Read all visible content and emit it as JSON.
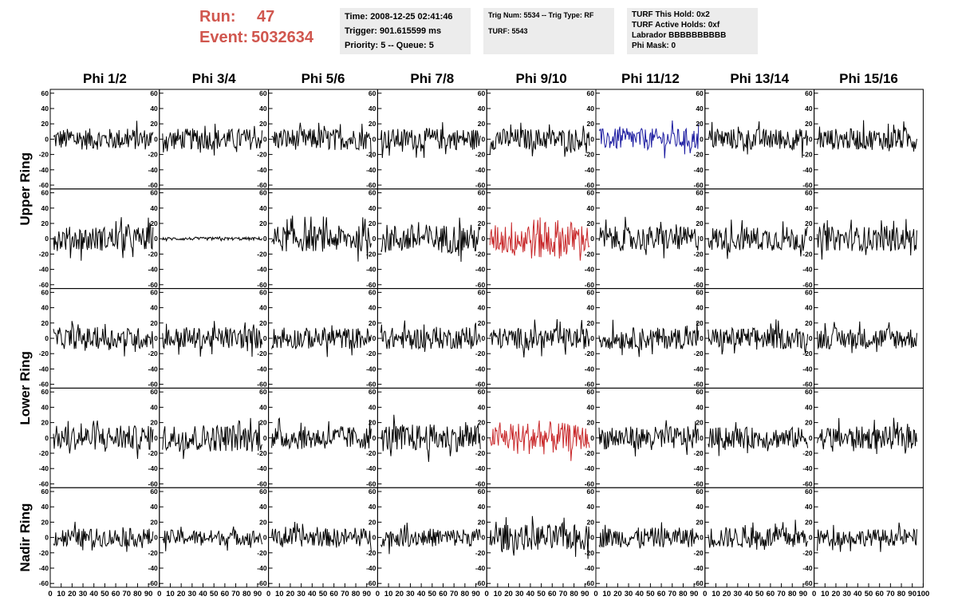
{
  "header": {
    "run_label": "Run:",
    "run_value": "47",
    "event_label": "Event:",
    "event_value": "5032634",
    "box1": [
      "Time: 2008-12-25 02:41:46",
      "Trigger: 901.615599 ms",
      "Priority: 5 -- Queue: 5"
    ],
    "box2": [
      "Trig Num: 5534 -- Trig Type: RF",
      "",
      "TURF: 5543"
    ],
    "box3": [
      "TURF This Hold: 0x2",
      "TURF Active Holds: 0xf",
      "Labrador BBBBBBBBBB",
      "Phi Mask: 0"
    ]
  },
  "colors": {
    "normal": "#000000",
    "l1_hit": "#1a1aa0",
    "l3_hit": "#c8282a",
    "accent": "#d0564e"
  },
  "chart_data": {
    "type": "line",
    "columns": [
      "Phi 1/2",
      "Phi 3/4",
      "Phi 5/6",
      "Phi 7/8",
      "Phi 9/10",
      "Phi 11/12",
      "Phi 13/14",
      "Phi 15/16"
    ],
    "row_labels": [
      "Upper Ring",
      "Lower Ring",
      "Nadir Ring"
    ],
    "ylim": [
      -65,
      65
    ],
    "yticks": [
      -60,
      -40,
      -20,
      0,
      20,
      40,
      60
    ],
    "xlim": [
      0,
      100
    ],
    "xtick_labels": [
      "0",
      "10",
      "20",
      "30",
      "40",
      "50",
      "60",
      "70",
      "80",
      "90",
      "100"
    ],
    "grid": false,
    "rows": [
      {
        "amp": [
          14,
          14,
          14,
          14,
          14,
          14,
          14,
          14
        ],
        "color": [
          "normal",
          "normal",
          "normal",
          "normal",
          "normal",
          "l1_hit",
          "normal",
          "normal"
        ]
      },
      {
        "amp": [
          16,
          2,
          17,
          19,
          28,
          16,
          16,
          16
        ],
        "color": [
          "normal",
          "normal",
          "normal",
          "normal",
          "l3_hit",
          "normal",
          "normal",
          "normal"
        ]
      },
      {
        "amp": [
          14,
          14,
          14,
          14,
          14,
          14,
          14,
          14
        ],
        "color": [
          "normal",
          "normal",
          "normal",
          "normal",
          "normal",
          "normal",
          "normal",
          "normal"
        ]
      },
      {
        "amp": [
          16,
          18,
          15,
          18,
          22,
          15,
          14,
          15
        ],
        "color": [
          "normal",
          "normal",
          "normal",
          "normal",
          "l3_hit",
          "normal",
          "normal",
          "normal"
        ]
      },
      {
        "amp": [
          12,
          10,
          12,
          12,
          17,
          13,
          14,
          11
        ],
        "color": [
          "normal",
          "normal",
          "normal",
          "normal",
          "normal",
          "normal",
          "normal",
          "normal"
        ]
      }
    ]
  }
}
